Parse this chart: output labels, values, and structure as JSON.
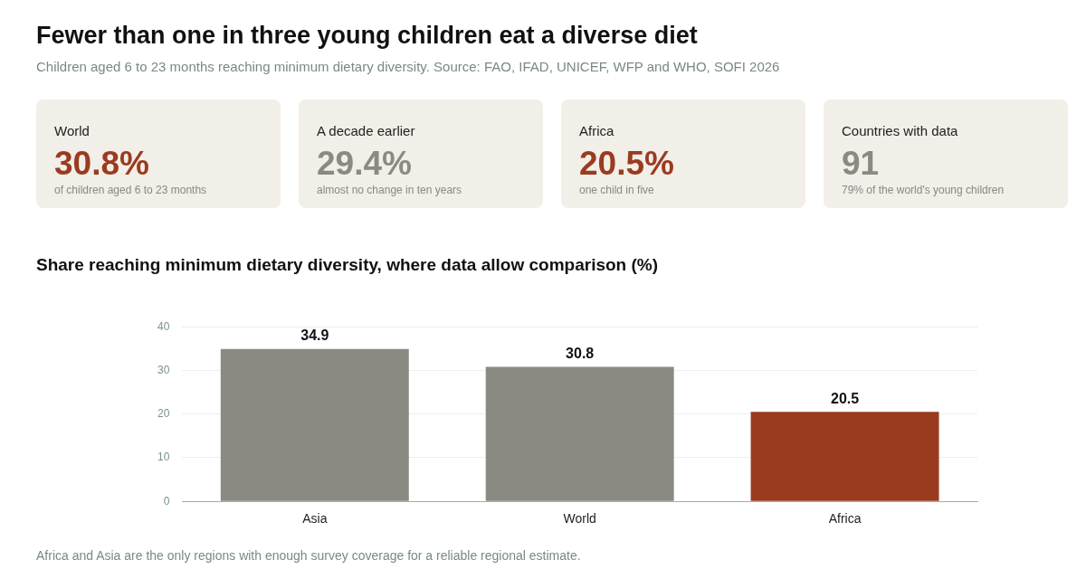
{
  "chart_data": [
    {
      "type": "other",
      "title": "Fewer than one in three young children eat a diverse diet",
      "subtitle": "Children aged 6 to 23 months reaching minimum dietary diversity. Source: FAO, IFAD, UNICEF, WFP and WHO, SOFI 2026"
    },
    {
      "type": "other",
      "title": "World",
      "annotations": [
        "30.8%",
        "of children aged 6 to 23 months"
      ],
      "color": "#9a3b1f"
    },
    {
      "type": "other",
      "title": "A decade earlier",
      "annotations": [
        "29.4%",
        "almost no change in ten years"
      ],
      "color": "#8a8a82"
    },
    {
      "type": "other",
      "title": "Africa",
      "annotations": [
        "20.5%",
        "one child in five"
      ],
      "color": "#9a3b1f"
    },
    {
      "type": "other",
      "title": "Countries with data",
      "annotations": [
        "91",
        "79% of the world's young children"
      ],
      "color": "#8a8a82"
    },
    {
      "type": "bar",
      "title": "Share reaching minimum dietary diversity, where data allow comparison (%)",
      "categories": [
        "Asia",
        "World",
        "Africa"
      ],
      "values": [
        34.9,
        30.8,
        20.5
      ],
      "colors": [
        "#8a8a82",
        "#8a8a82",
        "#9a3b1f"
      ],
      "ylim": [
        0,
        40
      ],
      "yticks": [
        0,
        10,
        20,
        30,
        40
      ],
      "grid": "y",
      "data_labels": true,
      "annotations": [
        "Africa and Asia are the only regions with enough survey coverage for a reliable regional estimate."
      ]
    }
  ]
}
